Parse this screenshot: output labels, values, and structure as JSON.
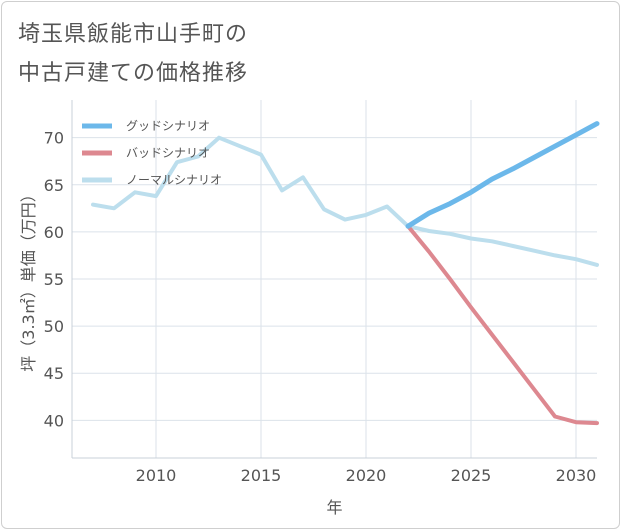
{
  "header": {
    "title_line1": "埼玉県飯能市山手町の",
    "title_line2": "中古戸建ての価格推移"
  },
  "chart_data": {
    "type": "line",
    "title": "埼玉県飯能市山手町の中古戸建ての価格推移",
    "xlabel": "年",
    "ylabel": "坪（3.3㎡）単価（万円）",
    "xlim": [
      2006,
      2031
    ],
    "ylim": [
      36,
      74
    ],
    "x_ticks": [
      2010,
      2015,
      2020,
      2025,
      2030
    ],
    "y_ticks": [
      40,
      45,
      50,
      55,
      60,
      65,
      70
    ],
    "grid": true,
    "legend_position": "top-left",
    "series": [
      {
        "name": "グッドシナリオ",
        "color": "#6cb8ea",
        "width": 5,
        "points": [
          [
            2022,
            60.6
          ],
          [
            2023,
            62.0
          ],
          [
            2024,
            63.0
          ],
          [
            2025,
            64.2
          ],
          [
            2026,
            65.6
          ],
          [
            2027,
            66.7
          ],
          [
            2028,
            67.9
          ],
          [
            2029,
            69.1
          ],
          [
            2030,
            70.3
          ],
          [
            2031,
            71.5
          ]
        ]
      },
      {
        "name": "バッドシナリオ",
        "color": "#dd8890",
        "width": 4,
        "points": [
          [
            2022,
            60.6
          ],
          [
            2023,
            57.9
          ],
          [
            2024,
            55.0
          ],
          [
            2025,
            52.0
          ],
          [
            2026,
            49.1
          ],
          [
            2027,
            46.2
          ],
          [
            2028,
            43.3
          ],
          [
            2029,
            40.4
          ],
          [
            2030,
            39.8
          ],
          [
            2031,
            39.7
          ]
        ]
      },
      {
        "name": "ノーマルシナリオ",
        "color": "#bcdeed",
        "width": 4,
        "points": [
          [
            2007,
            62.9
          ],
          [
            2008,
            62.5
          ],
          [
            2009,
            64.2
          ],
          [
            2010,
            63.8
          ],
          [
            2011,
            67.4
          ],
          [
            2012,
            68.0
          ],
          [
            2013,
            70.0
          ],
          [
            2014,
            69.1
          ],
          [
            2015,
            68.2
          ],
          [
            2016,
            64.4
          ],
          [
            2017,
            65.8
          ],
          [
            2018,
            62.4
          ],
          [
            2019,
            61.3
          ],
          [
            2020,
            61.8
          ],
          [
            2021,
            62.7
          ],
          [
            2022,
            60.6
          ],
          [
            2023,
            60.1
          ],
          [
            2024,
            59.8
          ],
          [
            2025,
            59.3
          ],
          [
            2026,
            59.0
          ],
          [
            2027,
            58.5
          ],
          [
            2028,
            58.0
          ],
          [
            2029,
            57.5
          ],
          [
            2030,
            57.1
          ],
          [
            2031,
            56.5
          ]
        ]
      }
    ]
  }
}
